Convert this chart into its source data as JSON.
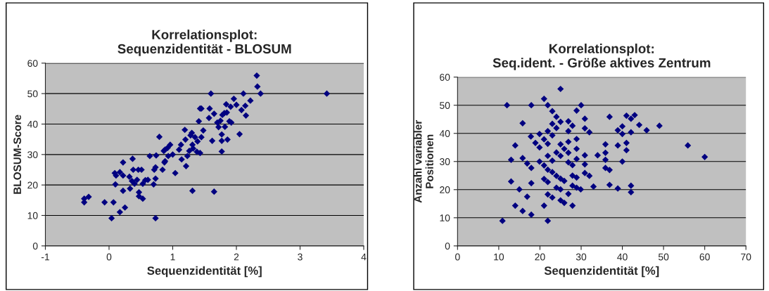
{
  "chart_data": [
    {
      "type": "scatter",
      "title": "Korrelationsplot:\nSequenzidentität - BLOSUM",
      "xlabel": "Sequenzidentität [%]",
      "ylabel": "BLOSUM-Score",
      "xlim": [
        -1,
        4
      ],
      "xticks": [
        -1,
        0,
        1,
        2,
        3,
        4
      ],
      "ylim": [
        0,
        60
      ],
      "yticks": [
        0,
        10,
        20,
        30,
        40,
        50,
        60
      ],
      "grid": "y",
      "legend": false,
      "marker": "diamond",
      "series": [
        {
          "color": "#000080",
          "x": [
            -0.39,
            -0.39,
            -0.32,
            -0.07,
            0.07,
            0.04,
            0.17,
            0.25,
            0.09,
            0.11,
            0.17,
            0.22,
            0.22,
            0.1,
            0.22,
            0.32,
            0.33,
            0.37,
            0.36,
            0.38,
            0.4,
            0.44,
            0.46,
            0.51,
            0.47,
            0.47,
            0.53,
            0.53,
            0.57,
            0.61,
            0.64,
            0.7,
            0.71,
            0.73,
            0.73,
            0.74,
            0.73,
            0.79,
            0.84,
            0.87,
            0.88,
            0.86,
            0.88,
            0.92,
            0.96,
            0.93,
            1.0,
            1.04,
            1.1,
            1.13,
            1.14,
            1.19,
            1.2,
            1.21,
            1.23,
            1.26,
            1.28,
            1.3,
            1.31,
            1.31,
            1.32,
            1.35,
            1.39,
            1.38,
            1.41,
            1.43,
            1.45,
            1.43,
            1.45,
            1.48,
            1.58,
            1.6,
            1.57,
            1.62,
            1.65,
            1.65,
            1.7,
            1.72,
            1.75,
            1.77,
            1.77,
            1.77,
            1.78,
            1.81,
            1.84,
            1.85,
            1.82,
            1.86,
            1.89,
            1.92,
            1.91,
            1.96,
            2.0,
            2.05,
            2.08,
            2.11,
            2.14,
            2.15,
            2.22,
            2.32,
            2.33,
            2.38,
            3.42
          ],
          "values": [
            14.3,
            15.5,
            16.1,
            14.3,
            14.3,
            9.1,
            11.1,
            12.6,
            23.9,
            23.1,
            24.2,
            27.4,
            23.1,
            20.2,
            18.1,
            22.7,
            18.8,
            28.6,
            21.3,
            25.0,
            20.4,
            21.7,
            25.0,
            25.0,
            17.6,
            16.3,
            15.5,
            20.4,
            21.6,
            21.7,
            29.5,
            20.2,
            25.0,
            25.8,
            22.1,
            29.7,
            9.1,
            35.8,
            25.0,
            27.4,
            27.8,
            31.2,
            31.6,
            32.2,
            33.2,
            29.5,
            30.0,
            23.9,
            31.6,
            33.2,
            28.4,
            38.1,
            34.9,
            26.2,
            29.5,
            31.2,
            36.3,
            37.1,
            18.1,
            33.2,
            32.0,
            35.7,
            34.3,
            30.9,
            40.9,
            45.1,
            45.1,
            30.5,
            35.7,
            37.9,
            45.1,
            50.0,
            42.0,
            34.5,
            43.4,
            17.8,
            40.5,
            39.0,
            41.1,
            36.6,
            34.5,
            31.0,
            43.0,
            43.6,
            46.5,
            43.8,
            39.1,
            34.9,
            40.9,
            40.5,
            45.7,
            48.3,
            46.3,
            36.7,
            44.6,
            50.0,
            46.0,
            42.8,
            47.7,
            55.9,
            52.3,
            50.0,
            50.0
          ]
        }
      ]
    },
    {
      "type": "scatter",
      "title": "Korrelationsplot:\nSeq.ident. - Größe aktives Zentrum",
      "xlabel": "Sequenzidentität [%]",
      "ylabel": "Anzahl variabler\nPositionen",
      "xlim": [
        0,
        70
      ],
      "xticks": [
        0,
        10,
        20,
        30,
        40,
        50,
        60,
        70
      ],
      "ylim": [
        0,
        60
      ],
      "yticks": [
        0,
        10,
        20,
        30,
        40,
        50,
        60
      ],
      "grid": "y",
      "legend": false,
      "marker": "diamond",
      "series": [
        {
          "color": "#000080",
          "x": [
            10.9,
            12.0,
            13.0,
            13.0,
            14.0,
            14.0,
            15.0,
            15.8,
            15.8,
            15.8,
            16.9,
            16.9,
            17.9,
            17.8,
            17.9,
            17.9,
            17.9,
            18.9,
            19.9,
            19.9,
            19.9,
            21.0,
            21.0,
            21.0,
            21.0,
            21.0,
            21.9,
            21.9,
            21.9,
            21.9,
            21.9,
            21.9,
            21.9,
            21.9,
            23.0,
            23.0,
            23.0,
            23.0,
            23.0,
            23.0,
            24.0,
            24.0,
            24.0,
            24.0,
            24.0,
            25.0,
            25.0,
            25.0,
            25.0,
            25.0,
            25.0,
            25.0,
            25.9,
            25.9,
            25.9,
            26.9,
            26.9,
            26.9,
            26.9,
            26.9,
            26.9,
            27.9,
            27.9,
            27.9,
            27.9,
            27.9,
            28.9,
            28.9,
            28.9,
            28.9,
            28.9,
            28.9,
            30.0,
            29.9,
            30.9,
            30.9,
            30.9,
            30.9,
            30.9,
            32.0,
            32.0,
            33.0,
            34.0,
            35.9,
            35.9,
            35.9,
            35.9,
            36.9,
            36.9,
            36.9,
            38.9,
            38.9,
            38.9,
            40.0,
            40.0,
            40.0,
            41.0,
            41.0,
            41.0,
            42.1,
            42.1,
            42.1,
            42.1,
            43.0,
            44.1,
            45.9,
            49.0,
            55.9,
            60.0
          ],
          "values": [
            8.9,
            50.0,
            30.6,
            22.9,
            35.7,
            14.3,
            20.1,
            43.6,
            31.2,
            12.4,
            29.3,
            17.5,
            50.0,
            38.9,
            27.7,
            22.3,
            11.1,
            36.6,
            39.8,
            35.0,
            30.0,
            52.3,
            37.9,
            28.6,
            23.8,
            14.3,
            50.0,
            40.8,
            36.3,
            32.0,
            27.1,
            22.7,
            18.3,
            8.9,
            47.9,
            43.4,
            39.3,
            30.3,
            26.2,
            17.2,
            45.9,
            41.9,
            33.2,
            24.9,
            20.7,
            55.8,
            44.1,
            36.1,
            32.0,
            23.9,
            20.1,
            16.2,
            34.5,
            23.1,
            15.3,
            44.3,
            40.8,
            37.0,
            33.1,
            29.7,
            18.5,
            42.7,
            28.7,
            25.0,
            21.4,
            14.3,
            48.1,
            38.0,
            34.5,
            30.9,
            24.3,
            20.7,
            50.0,
            20.1,
            45.2,
            41.8,
            32.2,
            29.0,
            25.9,
            40.4,
            24.9,
            21.1,
            32.2,
            36.1,
            33.1,
            30.6,
            27.7,
            45.9,
            27.0,
            21.7,
            41.1,
            35.7,
            20.4,
            42.5,
            39.8,
            30.0,
            46.3,
            36.6,
            34.0,
            45.2,
            40.4,
            21.4,
            19.1,
            46.5,
            43.0,
            41.1,
            42.7,
            35.7,
            31.6
          ]
        }
      ]
    }
  ]
}
